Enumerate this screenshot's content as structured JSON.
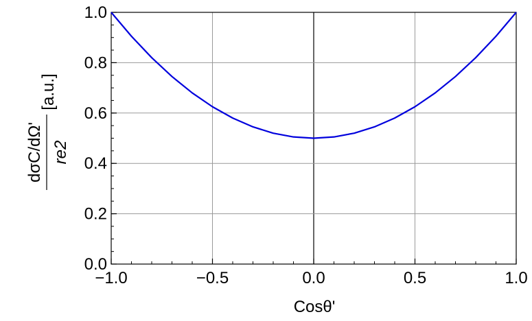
{
  "chart_data": {
    "type": "line",
    "xlabel": "Cosθ'",
    "ylabel": {
      "numerator": "dσC/dΩ'",
      "denominator": "re2",
      "unit": "[a.u.]"
    },
    "xlim": [
      -1.0,
      1.0
    ],
    "ylim": [
      0.0,
      1.0
    ],
    "x_ticks": [
      "−1.0",
      "−0.5",
      "0.0",
      "0.5",
      "1.0"
    ],
    "y_ticks": [
      "0.0",
      "0.2",
      "0.4",
      "0.6",
      "0.8",
      "1.0"
    ],
    "x_tick_values": [
      -1.0,
      -0.5,
      0.0,
      0.5,
      1.0
    ],
    "y_tick_values": [
      0.0,
      0.2,
      0.4,
      0.6,
      0.8,
      1.0
    ],
    "grid": true,
    "series": [
      {
        "color": "#0000dd",
        "x": [
          -1.0,
          -0.9,
          -0.8,
          -0.7,
          -0.6,
          -0.5,
          -0.4,
          -0.3,
          -0.2,
          -0.1,
          0.0,
          0.1,
          0.2,
          0.3,
          0.4,
          0.5,
          0.6,
          0.7,
          0.8,
          0.9,
          1.0
        ],
        "y": [
          1.0,
          0.905,
          0.82,
          0.745,
          0.68,
          0.625,
          0.58,
          0.545,
          0.52,
          0.505,
          0.5,
          0.505,
          0.52,
          0.545,
          0.58,
          0.625,
          0.68,
          0.745,
          0.82,
          0.905,
          1.0
        ]
      }
    ]
  }
}
